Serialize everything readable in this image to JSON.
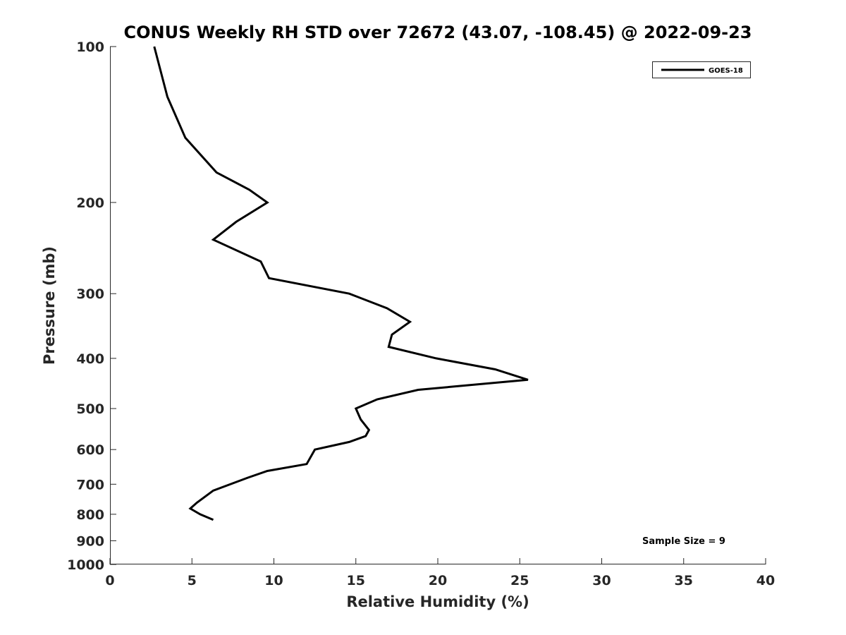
{
  "chart_data": {
    "type": "line",
    "title": "CONUS Weekly RH STD over 72672 (43.07, -108.45) @ 2022-09-23",
    "xlabel": "Relative Humidity (%)",
    "ylabel": "Pressure (mb)",
    "xlim": [
      0,
      40
    ],
    "ylim": [
      100,
      1000
    ],
    "yscale": "log",
    "y_reversed": true,
    "x_ticks": [
      "0",
      "5",
      "10",
      "15",
      "20",
      "25",
      "30",
      "35",
      "40"
    ],
    "y_ticks": [
      "100",
      "200",
      "300",
      "400",
      "500",
      "600",
      "700",
      "800",
      "900",
      "1000"
    ],
    "legend": {
      "entries": [
        "GOES-18"
      ],
      "location": "top-right"
    },
    "annotation": "Sample Size = 9",
    "series": [
      {
        "name": "GOES-18",
        "color": "#000000",
        "points": [
          {
            "x": 2.7,
            "y": 100
          },
          {
            "x": 3.5,
            "y": 125
          },
          {
            "x": 4.6,
            "y": 150
          },
          {
            "x": 6.5,
            "y": 175
          },
          {
            "x": 8.5,
            "y": 189
          },
          {
            "x": 9.6,
            "y": 200
          },
          {
            "x": 7.7,
            "y": 218
          },
          {
            "x": 6.3,
            "y": 236
          },
          {
            "x": 9.2,
            "y": 260
          },
          {
            "x": 9.7,
            "y": 280
          },
          {
            "x": 14.6,
            "y": 300
          },
          {
            "x": 16.9,
            "y": 320
          },
          {
            "x": 18.3,
            "y": 340
          },
          {
            "x": 17.2,
            "y": 360
          },
          {
            "x": 17.0,
            "y": 380
          },
          {
            "x": 19.9,
            "y": 400
          },
          {
            "x": 23.5,
            "y": 420
          },
          {
            "x": 25.5,
            "y": 440
          },
          {
            "x": 18.8,
            "y": 460
          },
          {
            "x": 16.3,
            "y": 480
          },
          {
            "x": 15.0,
            "y": 500
          },
          {
            "x": 15.3,
            "y": 525
          },
          {
            "x": 15.8,
            "y": 550
          },
          {
            "x": 15.6,
            "y": 565
          },
          {
            "x": 14.6,
            "y": 580
          },
          {
            "x": 12.5,
            "y": 600
          },
          {
            "x": 12.0,
            "y": 640
          },
          {
            "x": 9.6,
            "y": 660
          },
          {
            "x": 8.4,
            "y": 680
          },
          {
            "x": 6.3,
            "y": 720
          },
          {
            "x": 5.3,
            "y": 760
          },
          {
            "x": 4.9,
            "y": 780
          },
          {
            "x": 5.5,
            "y": 800
          },
          {
            "x": 6.3,
            "y": 820
          }
        ]
      }
    ]
  }
}
